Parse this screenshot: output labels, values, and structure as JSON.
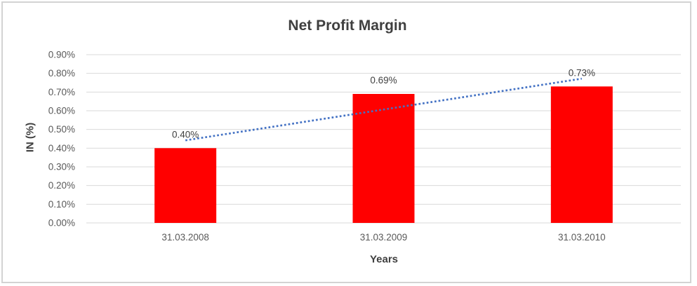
{
  "chart_data": {
    "type": "bar",
    "title": "Net Profit Margin",
    "xlabel": "Years",
    "ylabel": "IN (%)",
    "categories": [
      "31.03.2008",
      "31.03.2009",
      "31.03.2010"
    ],
    "values": [
      0.4,
      0.69,
      0.73
    ],
    "data_labels": [
      "0.40%",
      "0.69%",
      "0.73%"
    ],
    "y_ticks": [
      0,
      0.1,
      0.2,
      0.3,
      0.4,
      0.5,
      0.6,
      0.7,
      0.8,
      0.9
    ],
    "y_tick_labels": [
      "0.00%",
      "0.10%",
      "0.20%",
      "0.30%",
      "0.40%",
      "0.50%",
      "0.60%",
      "0.70%",
      "0.80%",
      "0.90%"
    ],
    "ylim": [
      0,
      0.9
    ],
    "grid": true,
    "legend": "none",
    "trendline": {
      "type": "linear",
      "style": "dotted",
      "color": "#4472C4"
    },
    "colors": {
      "bar": "#FF0000",
      "gridline": "#D9D9D9",
      "title_text": "#3F3F3F",
      "axis_text": "#595959",
      "label_text": "#404040",
      "frame_border": "#D3D3D3",
      "background": "#FFFFFF"
    }
  }
}
